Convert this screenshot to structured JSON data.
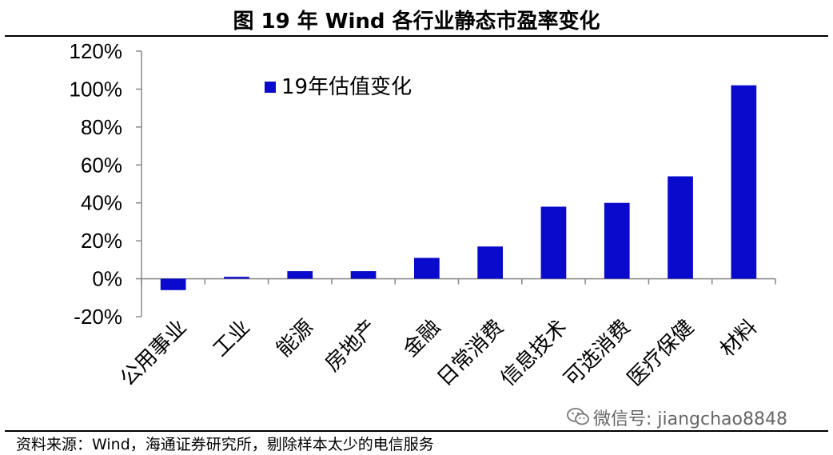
{
  "title": "图    19 年 Wind 各行业静态市盈率变化",
  "source": "资料来源：Wind，海通证券研究所，剔除样本太少的电信服务",
  "watermark": {
    "text": "微信号: jiangchao8848",
    "icon": "wechat-icon"
  },
  "colors": {
    "bar": "#0A0ACC",
    "axis": "#888888",
    "text": "#000000"
  },
  "chart_data": {
    "type": "bar",
    "categories": [
      "公用事业",
      "工业",
      "能源",
      "房地产",
      "金融",
      "日常消费",
      "信息技术",
      "可选消费",
      "医疗保健",
      "材料"
    ],
    "series": [
      {
        "name": "19年估值变化",
        "values": [
          -6,
          1,
          4,
          4,
          11,
          17,
          38,
          40,
          54,
          102
        ]
      }
    ],
    "ylim": [
      -20,
      120
    ],
    "yticks": [
      -20,
      0,
      20,
      40,
      60,
      80,
      100,
      120
    ],
    "ytick_labels": [
      "-20%",
      "0%",
      "20%",
      "40%",
      "60%",
      "80%",
      "100%",
      "120%"
    ],
    "legend_position": "top-left",
    "grid": false
  }
}
